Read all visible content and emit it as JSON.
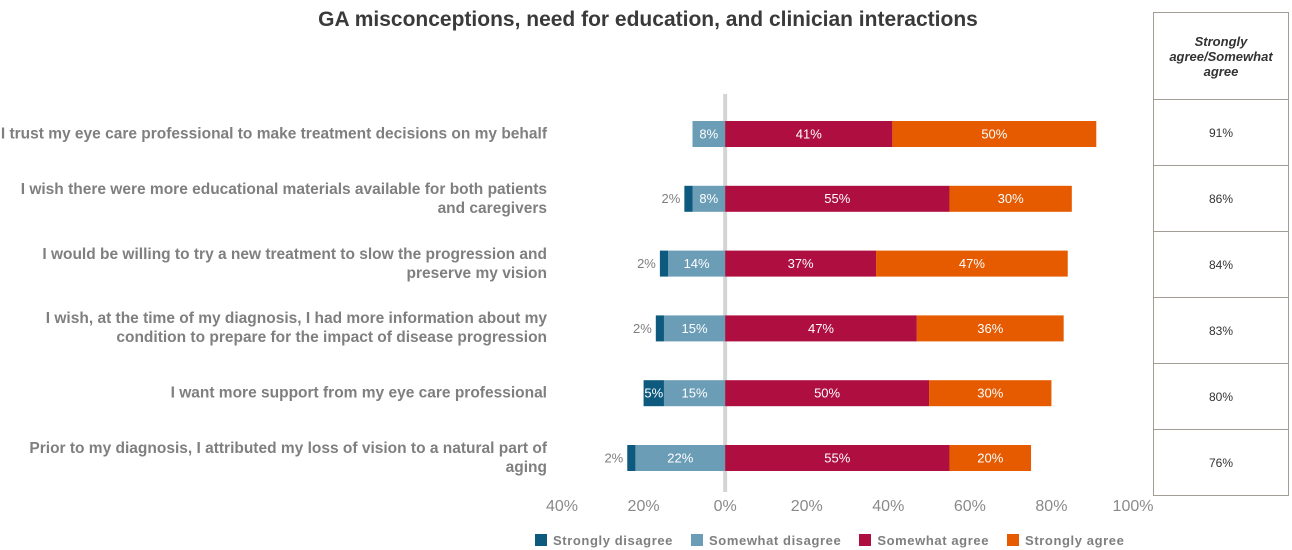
{
  "chart_data": {
    "type": "diverging-bar",
    "title": "GA misconceptions, need for education, and clinician interactions",
    "categories": [
      "I trust my eye care professional to make treatment decisions on my behalf",
      "I wish there were more educational materials available for both patients and caregivers",
      "I would be willing to try a new treatment to slow the progression and preserve my vision",
      "I wish, at the time of my diagnosis, I had more information about my condition to prepare for the impact of disease progression",
      "I want more support from my eye care professional",
      "Prior to my diagnosis, I attributed my loss of vision to a natural part of aging"
    ],
    "series": [
      {
        "name": "Strongly disagree",
        "color": "#0e5a7e",
        "values": [
          null,
          -2,
          -2,
          -2,
          -5,
          -2
        ],
        "value_labels": [
          null,
          "2%",
          "2%",
          "2%",
          "5%",
          "2%"
        ]
      },
      {
        "name": "Somewhat disagree",
        "color": "#6b9db6",
        "values": [
          -8,
          -8,
          -14,
          -15,
          -15,
          -22
        ],
        "value_labels": [
          "8%",
          "8%",
          "14%",
          "15%",
          "15%",
          "22%"
        ]
      },
      {
        "name": "Somewhat agree",
        "color": "#ae0f40",
        "values": [
          41,
          55,
          37,
          47,
          50,
          55
        ],
        "value_labels": [
          "41%",
          "55%",
          "37%",
          "47%",
          "50%",
          "55%"
        ]
      },
      {
        "name": "Strongly agree",
        "color": "#e65a00",
        "values": [
          50,
          30,
          47,
          36,
          30,
          20
        ],
        "value_labels": [
          "50%",
          "30%",
          "47%",
          "36%",
          "30%",
          "20%"
        ]
      }
    ],
    "xlim": [
      -40,
      100
    ],
    "xticks": [
      {
        "value": -40,
        "label": "40%"
      },
      {
        "value": -20,
        "label": "20%"
      },
      {
        "value": 0,
        "label": "0%"
      },
      {
        "value": 20,
        "label": "20%"
      },
      {
        "value": 40,
        "label": "40%"
      },
      {
        "value": 60,
        "label": "60%"
      },
      {
        "value": 80,
        "label": "80%"
      },
      {
        "value": 100,
        "label": "100%"
      }
    ]
  },
  "table": {
    "header": "Strongly agree/Somewhat agree",
    "rows": [
      "91%",
      "86%",
      "84%",
      "83%",
      "80%",
      "76%"
    ]
  }
}
